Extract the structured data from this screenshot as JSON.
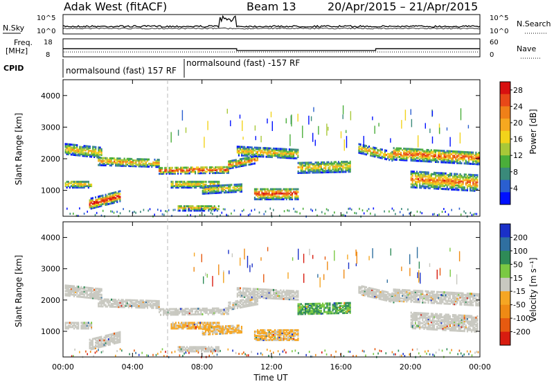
{
  "header": {
    "station": "Adak West (fitACF)",
    "beam": "Beam 13",
    "dates": "20/Apr/2015 – 21/Apr/2015"
  },
  "top_panels": {
    "nsky_label": "N.Sky",
    "nsky_ticks": [
      "10^5",
      "10^0"
    ],
    "nsearch_label": "N.Search",
    "nsearch_ticks": [
      "10^5",
      "10^0"
    ],
    "freq_label": "Freq.",
    "freq_unit": "[MHz]",
    "freq_ticks": [
      "18",
      "8"
    ],
    "nave_label": "Nave",
    "nave_ticks": [
      "60",
      "0"
    ],
    "cpid_label": "CPID",
    "cpid_entries": [
      {
        "text": "normalsound (fast) 157 RF",
        "start_hour": 0
      },
      {
        "text": "normalsound (fast) -157 RF",
        "start_hour": 6
      }
    ],
    "freq_step": {
      "low_start": 10,
      "low_end": 18,
      "high_MHz": 12.5,
      "low_MHz": 11.5
    }
  },
  "chart_data": [
    {
      "type": "heatmap",
      "name": "power",
      "ylabel": "Slant Range [km]",
      "ylim": [
        180,
        4500
      ],
      "yticks": [
        "1000",
        "2000",
        "3000",
        "4000"
      ],
      "colorbar_label": "Power [dB]",
      "colorbar_ticks": [
        "4",
        "8",
        "12",
        "16",
        "20",
        "24",
        "28"
      ],
      "colorbar_range": [
        0,
        30
      ],
      "colors": [
        "#0010ff",
        "#2a5fd0",
        "#3a8a7a",
        "#4aae3a",
        "#a8c838",
        "#f2d31a",
        "#f6a820",
        "#f08018",
        "#e84818",
        "#d81010"
      ]
    },
    {
      "type": "heatmap",
      "name": "velocity",
      "ylabel": "Slant Range [km]",
      "ylim": [
        180,
        4500
      ],
      "yticks": [
        "1000",
        "2000",
        "3000",
        "4000"
      ],
      "colorbar_label": "Velocity [m s⁻¹]",
      "colorbar_ticks": [
        "200",
        "100",
        "50",
        "15",
        "-15",
        "-50",
        "-100",
        "-200"
      ],
      "colors": [
        "#1a30c8",
        "#2f6fa0",
        "#2e8b57",
        "#7ac943",
        "#c8c8c0",
        "#f5a623",
        "#ef8a14",
        "#e65a10",
        "#d81c10"
      ]
    }
  ],
  "x_axis": {
    "label": "Time UT",
    "ticks": [
      "00:00",
      "04:00",
      "08:00",
      "12:00",
      "16:00",
      "20:00",
      "00:00"
    ],
    "range_hours": [
      0,
      24
    ]
  }
}
